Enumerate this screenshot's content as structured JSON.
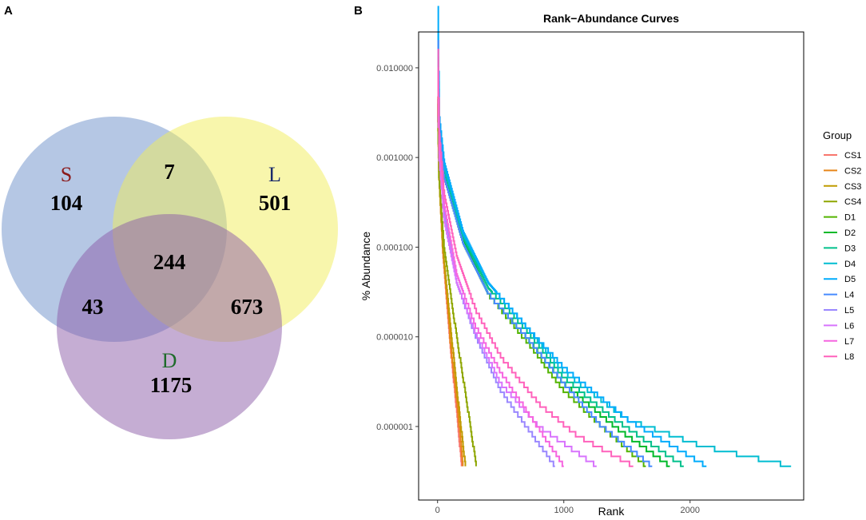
{
  "panels": {
    "a_label": "A",
    "b_label": "B"
  },
  "venn": {
    "sets": [
      {
        "name": "S",
        "color": "#6b8fc9",
        "label_color": "#8b1a1a"
      },
      {
        "name": "L",
        "color": "#f2ee59",
        "label_color": "#1a2a6b"
      },
      {
        "name": "D",
        "color": "#8c5ca8",
        "label_color": "#1e6b2a"
      }
    ],
    "regions": {
      "S_only": "104",
      "L_only": "501",
      "D_only": "1175",
      "S_L": "7",
      "S_D": "43",
      "L_D": "673",
      "S_L_D": "244"
    }
  },
  "chart_data": {
    "type": "line",
    "title": "Rank−Abundance Curves",
    "xlabel": "Rank",
    "ylabel": "% Abundance",
    "xlim": [
      -150,
      2900
    ],
    "xticks": [
      0,
      1000,
      2000
    ],
    "xtick_labels": [
      "0",
      "1000",
      "2000"
    ],
    "ylim_log10": [
      -6.82,
      -1.6
    ],
    "yticks": [
      1e-06,
      1e-05,
      0.0001,
      0.001,
      0.01
    ],
    "ytick_labels": [
      "0.000001",
      "0.000010",
      "0.000100",
      "0.001000",
      "0.010000"
    ],
    "y_scale": "log10",
    "step": true,
    "min_abundance": 3.6e-07,
    "legend_title": "Group",
    "legend_position": "right",
    "series": [
      {
        "name": "CS1",
        "color": "#f8766d",
        "max_rank": 190,
        "top": 0.0045,
        "p": [
          [
            0,
            0.0045
          ],
          [
            10,
            0.0007
          ],
          [
            40,
            9e-05
          ],
          [
            100,
            8e-06
          ],
          [
            150,
            1.5e-06
          ],
          [
            190,
            3.6e-07
          ]
        ]
      },
      {
        "name": "CS2",
        "color": "#e7861a",
        "max_rank": 200,
        "top": 0.0048,
        "p": [
          [
            0,
            0.0048
          ],
          [
            10,
            0.0007
          ],
          [
            40,
            0.0001
          ],
          [
            100,
            9e-06
          ],
          [
            160,
            1.5e-06
          ],
          [
            200,
            3.6e-07
          ]
        ]
      },
      {
        "name": "CS3",
        "color": "#c09b00",
        "max_rank": 220,
        "top": 0.004,
        "p": [
          [
            0,
            0.004
          ],
          [
            10,
            0.0006
          ],
          [
            40,
            0.0001
          ],
          [
            110,
            1e-05
          ],
          [
            170,
            1.5e-06
          ],
          [
            220,
            3.6e-07
          ]
        ]
      },
      {
        "name": "CS4",
        "color": "#8ea600",
        "max_rank": 305,
        "top": 0.0035,
        "p": [
          [
            0,
            0.0035
          ],
          [
            10,
            0.0006
          ],
          [
            50,
            0.0001
          ],
          [
            150,
            1e-05
          ],
          [
            240,
            1.5e-06
          ],
          [
            305,
            3.6e-07
          ]
        ]
      },
      {
        "name": "D1",
        "color": "#53b400",
        "max_rank": 1650,
        "top": 0.012,
        "p": [
          [
            0,
            0.012
          ],
          [
            10,
            0.002
          ],
          [
            50,
            0.0006
          ],
          [
            200,
            0.00011
          ],
          [
            400,
            3e-05
          ],
          [
            700,
            9e-06
          ],
          [
            1000,
            2.5e-06
          ],
          [
            1300,
            1e-06
          ],
          [
            1650,
            3.6e-07
          ]
        ]
      },
      {
        "name": "D2",
        "color": "#00b929",
        "max_rank": 1840,
        "top": 0.013,
        "p": [
          [
            0,
            0.013
          ],
          [
            10,
            0.0022
          ],
          [
            50,
            0.0007
          ],
          [
            200,
            0.00012
          ],
          [
            400,
            3e-05
          ],
          [
            700,
            1e-05
          ],
          [
            1000,
            3e-06
          ],
          [
            1400,
            1e-06
          ],
          [
            1840,
            3.6e-07
          ]
        ]
      },
      {
        "name": "D3",
        "color": "#00c08b",
        "max_rank": 1950,
        "top": 0.02,
        "p": [
          [
            0,
            0.02
          ],
          [
            10,
            0.0025
          ],
          [
            50,
            0.0007
          ],
          [
            200,
            0.00013
          ],
          [
            400,
            3.5e-05
          ],
          [
            700,
            1.2e-05
          ],
          [
            1000,
            3.5e-06
          ],
          [
            1400,
            1.2e-06
          ],
          [
            1950,
            3.6e-07
          ]
        ]
      },
      {
        "name": "D4",
        "color": "#00bdd1",
        "max_rank": 2800,
        "top": 0.025,
        "p": [
          [
            0,
            0.025
          ],
          [
            10,
            0.003
          ],
          [
            50,
            0.0008
          ],
          [
            200,
            0.00014
          ],
          [
            400,
            4e-05
          ],
          [
            700,
            1.3e-05
          ],
          [
            1000,
            4e-06
          ],
          [
            1500,
            1.2e-06
          ],
          [
            2100,
            6e-07
          ],
          [
            2800,
            3.6e-07
          ]
        ]
      },
      {
        "name": "D5",
        "color": "#00acfc",
        "max_rank": 2130,
        "top": 0.048,
        "p": [
          [
            0,
            0.048
          ],
          [
            10,
            0.003
          ],
          [
            50,
            0.0009
          ],
          [
            200,
            0.00015
          ],
          [
            400,
            4e-05
          ],
          [
            700,
            1.3e-05
          ],
          [
            1000,
            4.5e-06
          ],
          [
            1500,
            1.2e-06
          ],
          [
            2130,
            3.6e-07
          ]
        ]
      },
      {
        "name": "L4",
        "color": "#478bff",
        "max_rank": 1700,
        "top": 0.02,
        "p": [
          [
            0,
            0.02
          ],
          [
            10,
            0.0022
          ],
          [
            50,
            0.0006
          ],
          [
            200,
            0.00011
          ],
          [
            400,
            3e-05
          ],
          [
            700,
            1e-05
          ],
          [
            1000,
            3e-06
          ],
          [
            1300,
            1e-06
          ],
          [
            1700,
            3.6e-07
          ]
        ]
      },
      {
        "name": "L5",
        "color": "#9a87ff",
        "max_rank": 930,
        "top": 0.009,
        "p": [
          [
            0,
            0.009
          ],
          [
            10,
            0.0012
          ],
          [
            50,
            0.00025
          ],
          [
            150,
            4e-05
          ],
          [
            300,
            1e-05
          ],
          [
            500,
            2.5e-06
          ],
          [
            700,
            1e-06
          ],
          [
            930,
            3.6e-07
          ]
        ]
      },
      {
        "name": "L6",
        "color": "#d874fd",
        "max_rank": 1260,
        "top": 0.007,
        "p": [
          [
            0,
            0.007
          ],
          [
            10,
            0.001
          ],
          [
            50,
            0.0002
          ],
          [
            150,
            4e-05
          ],
          [
            300,
            1.1e-05
          ],
          [
            500,
            3e-06
          ],
          [
            800,
            1e-06
          ],
          [
            1260,
            3.6e-07
          ]
        ]
      },
      {
        "name": "L7",
        "color": "#f665e0",
        "max_rank": 1000,
        "top": 0.01,
        "p": [
          [
            0,
            0.01
          ],
          [
            10,
            0.0013
          ],
          [
            50,
            0.0003
          ],
          [
            150,
            5e-05
          ],
          [
            300,
            1.3e-05
          ],
          [
            500,
            4e-06
          ],
          [
            750,
            1.2e-06
          ],
          [
            1000,
            3.6e-07
          ]
        ]
      },
      {
        "name": "L8",
        "color": "#ff62bc",
        "max_rank": 1550,
        "top": 0.016,
        "p": [
          [
            0,
            0.016
          ],
          [
            10,
            0.002
          ],
          [
            50,
            0.0004
          ],
          [
            150,
            8e-05
          ],
          [
            300,
            2e-05
          ],
          [
            500,
            6e-06
          ],
          [
            800,
            1.8e-06
          ],
          [
            1100,
            8e-07
          ],
          [
            1550,
            3.6e-07
          ]
        ]
      }
    ]
  }
}
